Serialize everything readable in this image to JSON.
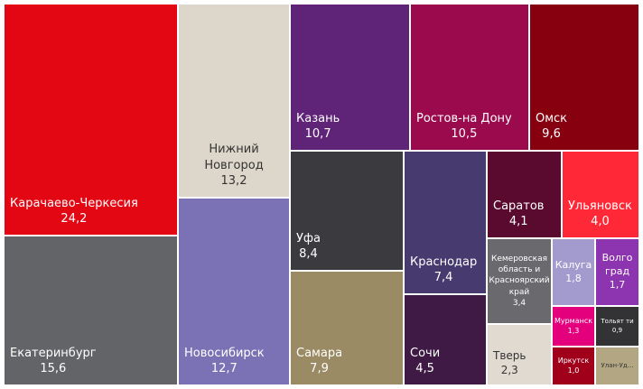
{
  "chart_data": {
    "type": "treemap",
    "categories": [
      "Карачаево-Черкесия",
      "Екатеринбург",
      "Нижний Новгород",
      "Новосибирск",
      "Казань",
      "Ростов-на Дону",
      "Омск",
      "Уфа",
      "Самара",
      "Краснодар",
      "Сочи",
      "Саратов",
      "Ульяновск",
      "Кемеровская область и Красноярский край",
      "Тверь",
      "Калуга",
      "Волго град",
      "Мурманск",
      "Иркутск",
      "Тольят ти",
      "Улан-Уд..."
    ],
    "values": [
      24.2,
      15.6,
      13.2,
      12.7,
      10.7,
      10.5,
      9.6,
      8.4,
      7.9,
      7.4,
      4.5,
      4.1,
      4.0,
      3.4,
      2.3,
      1.8,
      1.7,
      1.3,
      1.0,
      0.9,
      0.8
    ],
    "value_labels": [
      "24,2",
      "15,6",
      "13,2",
      "12,7",
      "10,7",
      "10,5",
      "9,6",
      "8,4",
      "7,9",
      "7,4",
      "4,5",
      "4,1",
      "4,0",
      "3,4",
      "2,3",
      "1,8",
      "1,7",
      "1,3",
      "1,0",
      "0,9",
      null
    ],
    "colors": [
      "#e30613",
      "#636467",
      "#ddd6ca",
      "#7b72b5",
      "#5f2378",
      "#9c0a4e",
      "#87000f",
      "#3b3a3e",
      "#9a8b64",
      "#463a6e",
      "#3e1a45",
      "#5a0a2e",
      "#ff2836",
      "#6a6a6e",
      "#e0dad0",
      "#a39bcd",
      "#8d35b0",
      "#e4007c",
      "#a0001a",
      "#333335",
      "#b3a682"
    ]
  }
}
